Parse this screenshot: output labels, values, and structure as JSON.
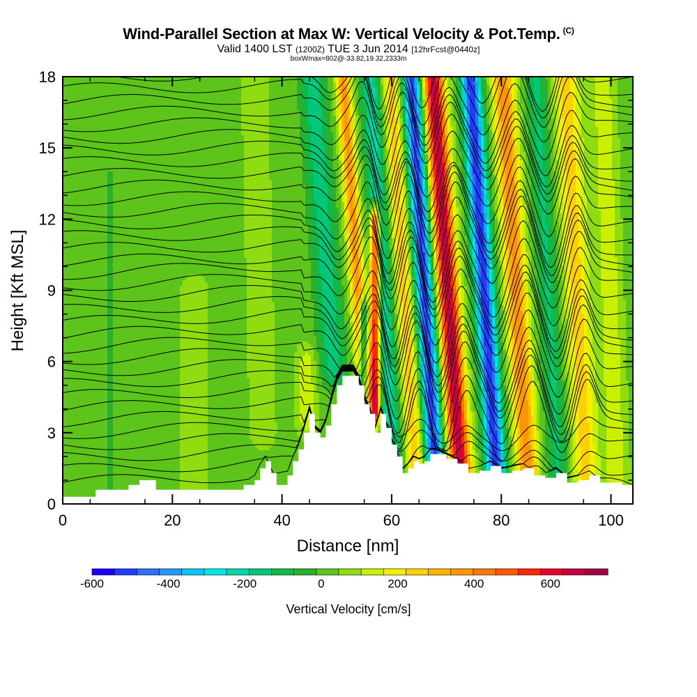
{
  "header": {
    "title": "Wind-Parallel Section at Max W: Vertical Velocity & Pot.Temp.",
    "title_tag": "(C)",
    "subtitle_main": "Valid 1400 LST",
    "subtitle_utc": "(1200Z)",
    "subtitle_date": "TUE 3 Jun 2014",
    "subtitle_fcst": "[12hrFcst@0440z]",
    "subtitle2": "boxWmax=802@-33.82,19.32,2333m"
  },
  "chart_data": {
    "type": "heatmap",
    "title": "Wind-Parallel Section at Max W: Vertical Velocity & Pot.Temp.",
    "xlabel": "Distance [nm]",
    "ylabel": "Height [Kft MSL]",
    "xlim": [
      0,
      104
    ],
    "ylim": [
      0,
      18
    ],
    "x_ticks": [
      0,
      20,
      40,
      60,
      80,
      100
    ],
    "y_ticks": [
      0,
      3,
      6,
      9,
      12,
      15,
      18
    ],
    "colorbar": {
      "label": "Vertical Velocity [cm/s]",
      "range": [
        -600,
        750
      ],
      "tick_labels": [
        -600,
        -400,
        -200,
        0,
        200,
        400,
        600
      ],
      "colors": [
        "#1a00ff",
        "#1e3cff",
        "#2f6dff",
        "#1f9bff",
        "#00c8ff",
        "#00e6e6",
        "#00d8a8",
        "#00c878",
        "#10b848",
        "#2caf2c",
        "#5cc41a",
        "#8fdc10",
        "#c8f000",
        "#f0f000",
        "#ffd000",
        "#ffb400",
        "#ff9600",
        "#ff7800",
        "#ff5a00",
        "#ff2800",
        "#e8002c",
        "#c40040",
        "#a00040"
      ]
    },
    "terrain_profile": {
      "x_nm": [
        0,
        6,
        10,
        12,
        14,
        16,
        17,
        20,
        22,
        25,
        30,
        33,
        35,
        36,
        37,
        38,
        39,
        41,
        42,
        43,
        44,
        45,
        46,
        47,
        48,
        49,
        50,
        51,
        52,
        53,
        54,
        55,
        56,
        57,
        58,
        59,
        60,
        61,
        62,
        63,
        64,
        65,
        66,
        67,
        68,
        70,
        72,
        74,
        76,
        78,
        80,
        82,
        84,
        86,
        88,
        90,
        92,
        94,
        96,
        98,
        100,
        102,
        104
      ],
      "height_kft": [
        0.3,
        0.6,
        0.6,
        0.8,
        1.0,
        1.0,
        0.6,
        0.6,
        0.6,
        0.6,
        0.6,
        0.8,
        1.0,
        1.5,
        1.8,
        1.3,
        0.8,
        1.2,
        1.8,
        2.3,
        3.0,
        3.8,
        3.0,
        2.8,
        3.3,
        4.2,
        5.0,
        5.4,
        5.4,
        5.4,
        5.0,
        4.2,
        3.8,
        3.0,
        3.8,
        3.2,
        2.5,
        2.0,
        1.3,
        1.5,
        1.8,
        1.7,
        1.8,
        2.1,
        2.1,
        1.9,
        1.7,
        1.3,
        1.4,
        1.6,
        1.3,
        1.4,
        1.5,
        1.2,
        1.1,
        1.3,
        0.9,
        1.0,
        1.2,
        0.9,
        0.9,
        0.8,
        0.6
      ]
    },
    "w_field": {
      "base_cm_s": 30,
      "features": [
        {
          "x_nm": 36.5,
          "top_kft": 18,
          "bottom_kft": 3,
          "tilt_nm_per_kft": -0.1,
          "amp_cm_s": 70,
          "half_width_nm": 2.0
        },
        {
          "x_nm": 44.5,
          "top_kft": 6,
          "bottom_kft": 3.5,
          "tilt_nm_per_kft": 0.0,
          "amp_cm_s": 120,
          "half_width_nm": 1.6
        },
        {
          "x_nm": 49.5,
          "top_kft": 18,
          "bottom_kft": 5.5,
          "tilt_nm_per_kft": -0.32,
          "amp_cm_s": -200,
          "half_width_nm": 2.4
        },
        {
          "x_nm": 55.2,
          "top_kft": 18,
          "bottom_kft": 4.5,
          "tilt_nm_per_kft": -0.3,
          "amp_cm_s": 330,
          "half_width_nm": 1.4
        },
        {
          "x_nm": 57.0,
          "top_kft": 12,
          "bottom_kft": 3.8,
          "tilt_nm_per_kft": 0.0,
          "amp_cm_s": 620,
          "half_width_nm": 0.9
        },
        {
          "x_nm": 54.8,
          "top_kft": 8,
          "bottom_kft": 3.8,
          "tilt_nm_per_kft": 0.0,
          "amp_cm_s": -420,
          "half_width_nm": 0.7
        },
        {
          "x_nm": 60.3,
          "top_kft": 18,
          "bottom_kft": 1.5,
          "tilt_nm_per_kft": -0.25,
          "amp_cm_s": -240,
          "half_width_nm": 2.0
        },
        {
          "x_nm": 64.3,
          "top_kft": 18,
          "bottom_kft": 1.5,
          "tilt_nm_per_kft": -0.28,
          "amp_cm_s": 230,
          "half_width_nm": 1.8
        },
        {
          "x_nm": 67.8,
          "top_kft": 18,
          "bottom_kft": 2.0,
          "tilt_nm_per_kft": -0.26,
          "amp_cm_s": -540,
          "half_width_nm": 1.7
        },
        {
          "x_nm": 72.5,
          "top_kft": 18,
          "bottom_kft": 1.5,
          "tilt_nm_per_kft": -0.3,
          "amp_cm_s": 640,
          "half_width_nm": 1.9
        },
        {
          "x_nm": 79.0,
          "top_kft": 18,
          "bottom_kft": 1.5,
          "tilt_nm_per_kft": -0.28,
          "amp_cm_s": -560,
          "half_width_nm": 1.8
        },
        {
          "x_nm": 84.8,
          "top_kft": 18,
          "bottom_kft": 1.3,
          "tilt_nm_per_kft": -0.27,
          "amp_cm_s": 350,
          "half_width_nm": 2.0
        },
        {
          "x_nm": 90.5,
          "top_kft": 18,
          "bottom_kft": 1.2,
          "tilt_nm_per_kft": -0.25,
          "amp_cm_s": -170,
          "half_width_nm": 2.0
        },
        {
          "x_nm": 95.5,
          "top_kft": 18,
          "bottom_kft": 1.0,
          "tilt_nm_per_kft": -0.22,
          "amp_cm_s": 220,
          "half_width_nm": 2.4
        },
        {
          "x_nm": 101.0,
          "top_kft": 18,
          "bottom_kft": 1.0,
          "tilt_nm_per_kft": -0.15,
          "amp_cm_s": 130,
          "half_width_nm": 1.8
        },
        {
          "x_nm": 8.5,
          "top_kft": 14,
          "bottom_kft": 0.5,
          "tilt_nm_per_kft": 0.0,
          "amp_cm_s": -45,
          "half_width_nm": 2.5
        },
        {
          "x_nm": 24.0,
          "top_kft": 9,
          "bottom_kft": 0.8,
          "tilt_nm_per_kft": 0.0,
          "amp_cm_s": 50,
          "half_width_nm": 2.5
        }
      ]
    },
    "theta_contours": {
      "levels_count": 34,
      "wave_crests_nm": [
        57.5,
        64.5,
        73.0,
        85.0,
        95.0
      ],
      "wave_troughs_nm": [
        51.0,
        60.5,
        68.5,
        79.5,
        90.5
      ],
      "wave_amp_kft_max": 1.6
    }
  }
}
